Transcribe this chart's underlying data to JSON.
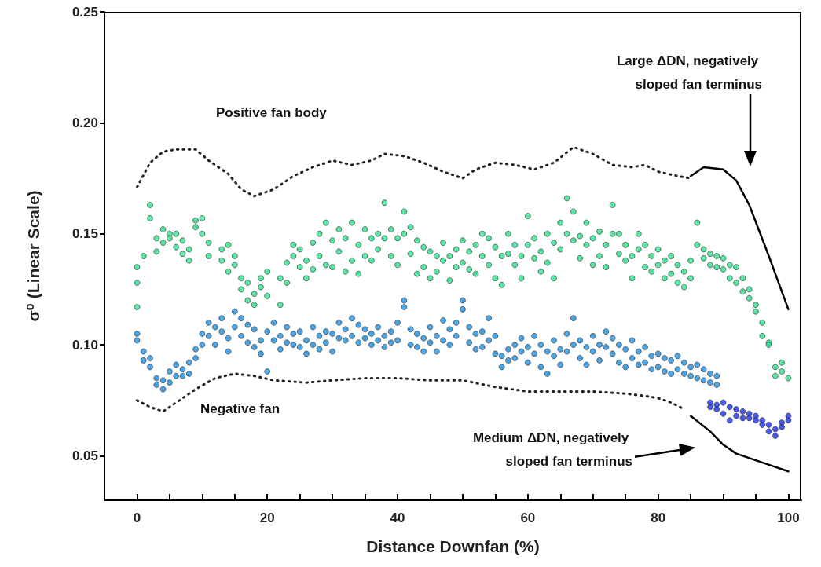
{
  "chart_data": {
    "type": "scatter",
    "xlabel": "Distance Downfan (%)",
    "ylabel": "σ⁰ (Linear Scale)",
    "xlim": [
      -5,
      102
    ],
    "ylim": [
      0.03,
      0.25
    ],
    "xticks": [
      0,
      {
        "value": 5,
        "label": null
      },
      {
        "value": 10,
        "label": null
      },
      {
        "value": 15,
        "label": null
      },
      20,
      {
        "value": 25,
        "label": null
      },
      {
        "value": 30,
        "label": null
      },
      {
        "value": 35,
        "label": null
      },
      40,
      {
        "value": 45,
        "label": null
      },
      {
        "value": 50,
        "label": null
      },
      {
        "value": 55,
        "label": null
      },
      60,
      {
        "value": 65,
        "label": null
      },
      {
        "value": 70,
        "label": null
      },
      {
        "value": 75,
        "label": null
      },
      80,
      {
        "value": 85,
        "label": null
      },
      {
        "value": 90,
        "label": null
      },
      {
        "value": 95,
        "label": null
      },
      100
    ],
    "yticks": [
      0.05,
      {
        "value": 0.1,
        "label": "0.10"
      },
      0.15,
      {
        "value": 0.2,
        "label": "0.20"
      },
      0.25
    ],
    "marker": "circle",
    "series": [
      {
        "color": "#2ee08c",
        "x": [
          0,
          0,
          0,
          1,
          2,
          2,
          3,
          3,
          4,
          4,
          5,
          5,
          6,
          6,
          7,
          7,
          8,
          8,
          9,
          9,
          10,
          10,
          11,
          11,
          13,
          13,
          14,
          14,
          15,
          15,
          16,
          16,
          17,
          17,
          18,
          18,
          19,
          19,
          20,
          20,
          22,
          22,
          23,
          23,
          24,
          24,
          25,
          25,
          26,
          26,
          27,
          27,
          28,
          28,
          29,
          29,
          30,
          30,
          31,
          31,
          32,
          32,
          33,
          33,
          34,
          34,
          35,
          35,
          36,
          36,
          37,
          37,
          38,
          38,
          39,
          39,
          40,
          40,
          41,
          41,
          42,
          42,
          43,
          43,
          44,
          44,
          45,
          45,
          46,
          46,
          47,
          47,
          48,
          48,
          49,
          49,
          50,
          50,
          51,
          51,
          52,
          52,
          53,
          53,
          54,
          54,
          55,
          55,
          56,
          56,
          57,
          57,
          58,
          58,
          59,
          59,
          60,
          60,
          61,
          61,
          62,
          62,
          63,
          63,
          64,
          64,
          65,
          65,
          66,
          66,
          67,
          67,
          68,
          68,
          69,
          69,
          70,
          70,
          71,
          71,
          72,
          72,
          73,
          73,
          74,
          74,
          75,
          75,
          76,
          76,
          77,
          77,
          78,
          78,
          79,
          79,
          80,
          80,
          81,
          81,
          82,
          82,
          83,
          83,
          84,
          84,
          85,
          85,
          86,
          86,
          87,
          87,
          88,
          88,
          89,
          89,
          90,
          90,
          91,
          91,
          92,
          92,
          93,
          93,
          94,
          94,
          95,
          95,
          96,
          96,
          97,
          97,
          98,
          98,
          99,
          99,
          100
        ],
        "values": [
          0.117,
          0.128,
          0.135,
          0.14,
          0.157,
          0.163,
          0.148,
          0.142,
          0.152,
          0.146,
          0.15,
          0.148,
          0.15,
          0.144,
          0.147,
          0.141,
          0.143,
          0.138,
          0.156,
          0.153,
          0.157,
          0.15,
          0.146,
          0.14,
          0.138,
          0.143,
          0.145,
          0.133,
          0.14,
          0.136,
          0.13,
          0.125,
          0.128,
          0.12,
          0.123,
          0.118,
          0.13,
          0.126,
          0.133,
          0.122,
          0.13,
          0.118,
          0.137,
          0.128,
          0.145,
          0.14,
          0.143,
          0.135,
          0.138,
          0.13,
          0.146,
          0.134,
          0.15,
          0.14,
          0.155,
          0.136,
          0.147,
          0.135,
          0.152,
          0.142,
          0.148,
          0.133,
          0.155,
          0.138,
          0.145,
          0.132,
          0.152,
          0.14,
          0.148,
          0.138,
          0.15,
          0.143,
          0.164,
          0.148,
          0.152,
          0.14,
          0.148,
          0.136,
          0.16,
          0.15,
          0.153,
          0.141,
          0.147,
          0.132,
          0.144,
          0.135,
          0.142,
          0.13,
          0.14,
          0.133,
          0.146,
          0.138,
          0.14,
          0.129,
          0.143,
          0.135,
          0.147,
          0.137,
          0.142,
          0.134,
          0.145,
          0.132,
          0.15,
          0.14,
          0.148,
          0.136,
          0.144,
          0.13,
          0.14,
          0.127,
          0.15,
          0.141,
          0.145,
          0.136,
          0.14,
          0.13,
          0.158,
          0.145,
          0.148,
          0.139,
          0.142,
          0.133,
          0.15,
          0.137,
          0.146,
          0.13,
          0.155,
          0.143,
          0.166,
          0.15,
          0.16,
          0.147,
          0.149,
          0.139,
          0.155,
          0.145,
          0.148,
          0.136,
          0.151,
          0.14,
          0.145,
          0.135,
          0.163,
          0.15,
          0.15,
          0.141,
          0.145,
          0.138,
          0.14,
          0.13,
          0.15,
          0.143,
          0.145,
          0.135,
          0.14,
          0.133,
          0.143,
          0.136,
          0.138,
          0.13,
          0.14,
          0.132,
          0.136,
          0.128,
          0.133,
          0.126,
          0.138,
          0.13,
          0.155,
          0.145,
          0.143,
          0.139,
          0.141,
          0.136,
          0.14,
          0.135,
          0.139,
          0.134,
          0.136,
          0.13,
          0.135,
          0.128,
          0.13,
          0.124,
          0.125,
          0.121,
          0.118,
          0.115,
          0.11,
          0.104,
          0.101,
          0.1,
          0.09,
          0.086,
          0.092,
          0.088,
          0.085
        ]
      },
      {
        "color": "#1e90e0",
        "x": [
          0,
          0,
          1,
          1,
          2,
          2,
          3,
          3,
          4,
          4,
          5,
          5,
          6,
          6,
          7,
          7,
          8,
          8,
          9,
          9,
          10,
          10,
          11,
          11,
          12,
          12,
          13,
          13,
          14,
          14,
          15,
          15,
          16,
          16,
          17,
          17,
          18,
          18,
          19,
          19,
          20,
          20,
          21,
          21,
          22,
          22,
          23,
          23,
          24,
          24,
          25,
          25,
          26,
          26,
          27,
          27,
          28,
          28,
          29,
          29,
          30,
          30,
          31,
          31,
          32,
          32,
          33,
          33,
          34,
          34,
          35,
          35,
          36,
          36,
          37,
          37,
          38,
          38,
          39,
          39,
          40,
          40,
          41,
          41,
          42,
          42,
          43,
          43,
          44,
          44,
          45,
          45,
          46,
          46,
          47,
          47,
          48,
          48,
          49,
          49,
          50,
          50,
          51,
          51,
          52,
          52,
          53,
          53,
          54,
          54,
          55,
          55,
          56,
          56,
          57,
          57,
          58,
          58,
          59,
          59,
          60,
          60,
          61,
          61,
          62,
          62,
          63,
          63,
          64,
          64,
          65,
          65,
          66,
          66,
          67,
          67,
          68,
          68,
          69,
          69,
          70,
          70,
          71,
          71,
          72,
          72,
          73,
          73,
          74,
          74,
          75,
          75,
          76,
          76,
          77,
          77,
          78,
          78,
          79,
          79,
          80,
          80,
          81,
          81,
          82,
          82,
          83,
          83,
          84,
          84,
          85,
          85,
          86,
          86,
          87,
          87,
          88,
          88,
          89,
          89
        ],
        "values": [
          0.105,
          0.102,
          0.097,
          0.093,
          0.09,
          0.094,
          0.085,
          0.082,
          0.08,
          0.084,
          0.088,
          0.083,
          0.091,
          0.086,
          0.086,
          0.089,
          0.092,
          0.087,
          0.098,
          0.094,
          0.105,
          0.1,
          0.11,
          0.104,
          0.108,
          0.1,
          0.112,
          0.106,
          0.103,
          0.097,
          0.115,
          0.108,
          0.112,
          0.104,
          0.109,
          0.101,
          0.107,
          0.099,
          0.102,
          0.096,
          0.106,
          0.088,
          0.11,
          0.102,
          0.104,
          0.098,
          0.108,
          0.101,
          0.105,
          0.1,
          0.106,
          0.099,
          0.102,
          0.096,
          0.108,
          0.1,
          0.104,
          0.098,
          0.106,
          0.101,
          0.105,
          0.097,
          0.11,
          0.103,
          0.107,
          0.102,
          0.112,
          0.104,
          0.109,
          0.101,
          0.107,
          0.103,
          0.105,
          0.1,
          0.108,
          0.102,
          0.104,
          0.099,
          0.106,
          0.101,
          0.11,
          0.102,
          0.12,
          0.117,
          0.107,
          0.1,
          0.105,
          0.099,
          0.103,
          0.097,
          0.108,
          0.101,
          0.104,
          0.097,
          0.111,
          0.102,
          0.107,
          0.1,
          0.11,
          0.104,
          0.12,
          0.116,
          0.108,
          0.101,
          0.105,
          0.098,
          0.106,
          0.099,
          0.112,
          0.102,
          0.104,
          0.096,
          0.095,
          0.09,
          0.098,
          0.093,
          0.1,
          0.094,
          0.103,
          0.097,
          0.099,
          0.092,
          0.104,
          0.096,
          0.1,
          0.09,
          0.097,
          0.087,
          0.102,
          0.095,
          0.098,
          0.091,
          0.105,
          0.097,
          0.112,
          0.1,
          0.102,
          0.094,
          0.099,
          0.091,
          0.104,
          0.097,
          0.1,
          0.093,
          0.106,
          0.099,
          0.103,
          0.096,
          0.1,
          0.092,
          0.098,
          0.09,
          0.102,
          0.094,
          0.097,
          0.091,
          0.099,
          0.092,
          0.095,
          0.089,
          0.096,
          0.09,
          0.094,
          0.088,
          0.093,
          0.087,
          0.095,
          0.089,
          0.092,
          0.087,
          0.09,
          0.086,
          0.091,
          0.085,
          0.089,
          0.084,
          0.087,
          0.083,
          0.086,
          0.082
        ]
      },
      {
        "color": "#1a2ee6",
        "x": [
          88,
          88,
          89,
          89,
          90,
          90,
          91,
          91,
          92,
          92,
          93,
          93,
          94,
          94,
          95,
          95,
          96,
          96,
          97,
          97,
          98,
          98,
          99,
          99,
          100,
          100
        ],
        "values": [
          0.074,
          0.072,
          0.073,
          0.071,
          0.074,
          0.069,
          0.072,
          0.066,
          0.071,
          0.068,
          0.07,
          0.067,
          0.069,
          0.067,
          0.068,
          0.066,
          0.066,
          0.064,
          0.064,
          0.061,
          0.062,
          0.059,
          0.065,
          0.063,
          0.068,
          0.066
        ]
      },
      {
        "type": "line",
        "color": "#222222",
        "marker": "none",
        "line_style": "dotted",
        "x": [
          0,
          2,
          4,
          6,
          9,
          11,
          14,
          16,
          18,
          21,
          24,
          27,
          30,
          33,
          36,
          38,
          41,
          44,
          47,
          50,
          52,
          55,
          58,
          61,
          64,
          67,
          70,
          73,
          76,
          78,
          80,
          83,
          85
        ],
        "values": [
          0.171,
          0.182,
          0.187,
          0.188,
          0.188,
          0.183,
          0.177,
          0.17,
          0.167,
          0.17,
          0.176,
          0.18,
          0.183,
          0.181,
          0.183,
          0.186,
          0.185,
          0.182,
          0.178,
          0.175,
          0.179,
          0.182,
          0.181,
          0.179,
          0.182,
          0.189,
          0.186,
          0.181,
          0.18,
          0.181,
          0.178,
          0.176,
          0.175
        ]
      },
      {
        "type": "line",
        "color": "#222222",
        "marker": "none",
        "line_style": "dotted",
        "x": [
          0,
          2,
          4,
          6,
          9,
          12,
          15,
          18,
          21,
          26,
          30,
          35,
          40,
          45,
          50,
          55,
          60,
          65,
          70,
          75,
          78,
          80,
          82,
          84
        ],
        "values": [
          0.075,
          0.072,
          0.07,
          0.074,
          0.08,
          0.085,
          0.087,
          0.086,
          0.084,
          0.083,
          0.084,
          0.085,
          0.085,
          0.084,
          0.084,
          0.081,
          0.079,
          0.079,
          0.079,
          0.078,
          0.077,
          0.076,
          0.074,
          0.071
        ]
      },
      {
        "type": "line",
        "color": "#000000",
        "marker": "none",
        "line_style": "solid",
        "x": [
          85,
          87,
          90,
          92,
          94,
          97,
          100
        ],
        "values": [
          0.176,
          0.18,
          0.179,
          0.174,
          0.163,
          0.14,
          0.116
        ]
      },
      {
        "type": "line",
        "color": "#000000",
        "marker": "none",
        "line_style": "solid",
        "x": [
          85,
          88,
          90,
          92,
          95,
          98,
          100
        ],
        "values": [
          0.068,
          0.061,
          0.055,
          0.051,
          0.048,
          0.045,
          0.043
        ]
      }
    ],
    "annotations": [
      "Positive fan body",
      "Negative fan",
      "Large ΔDN, negatively sloped fan terminus",
      "Medium ΔDN, negatively sloped fan terminus"
    ]
  }
}
